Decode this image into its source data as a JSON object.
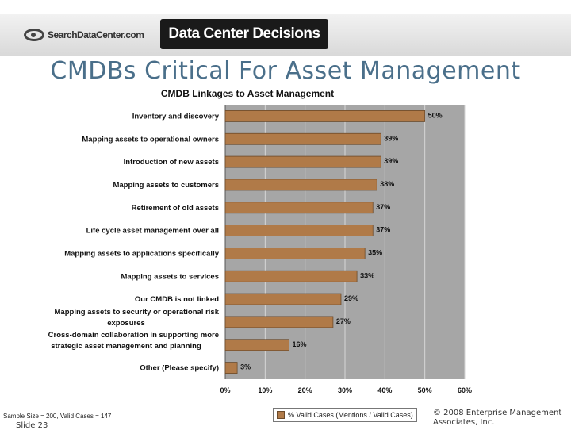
{
  "header": {
    "left_logo_text": "SearchDataCenter.com",
    "right_banner_text": "Data Center Decisions"
  },
  "slide": {
    "title": "CMDBs Critical For Asset Management",
    "sample_note": "Sample Size = 200, Valid Cases = 147",
    "slide_number": "Slide 23",
    "copyright": "© 2008 Enterprise Management Associates, Inc."
  },
  "colors": {
    "bar_fill": "#b07a48",
    "bar_stroke": "#6b4a2a",
    "plot_bg": "#a6a6a6",
    "title_color": "#4a6f8a"
  },
  "chart_data": {
    "type": "bar",
    "orientation": "horizontal",
    "title": "CMDB Linkages to Asset Management",
    "categories": [
      [
        "Inventory and discovery"
      ],
      [
        "Mapping assets to operational owners"
      ],
      [
        "Introduction of new assets"
      ],
      [
        "Mapping assets to customers"
      ],
      [
        "Retirement of old assets"
      ],
      [
        "Life cycle asset management over all"
      ],
      [
        "Mapping assets to applications specifically"
      ],
      [
        "Mapping assets to services"
      ],
      [
        "Our CMDB is not linked"
      ],
      [
        "Mapping assets to security or operational risk",
        "exposures"
      ],
      [
        "Cross-domain collaboration in supporting more",
        "strategic asset management and planning"
      ],
      [
        "Other (Please specify)"
      ]
    ],
    "values": [
      50,
      39,
      39,
      38,
      37,
      37,
      35,
      33,
      29,
      27,
      16,
      3
    ],
    "value_labels": [
      "50%",
      "39%",
      "39%",
      "38%",
      "37%",
      "37%",
      "35%",
      "33%",
      "29%",
      "27%",
      "16%",
      "3%"
    ],
    "xlim": [
      0,
      60
    ],
    "xticks": [
      0,
      10,
      20,
      30,
      40,
      50,
      60
    ],
    "xtick_labels": [
      "0%",
      "10%",
      "20%",
      "30%",
      "40%",
      "50%",
      "60%"
    ],
    "grid": true,
    "legend": {
      "position": "bottom",
      "entries": [
        "% Valid Cases (Mentions / Valid Cases)"
      ]
    }
  }
}
